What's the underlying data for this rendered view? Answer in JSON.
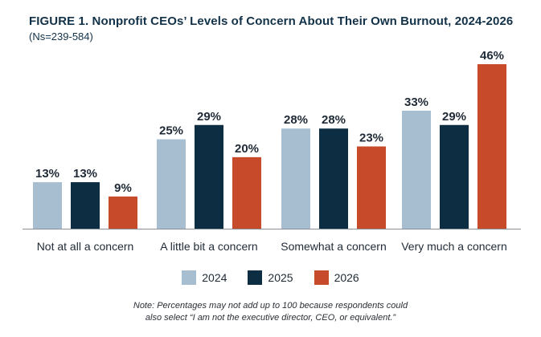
{
  "title": "FIGURE 1. Nonprofit CEOs’ Levels of Concern About Their Own Burnout, 2024-2026",
  "subtitle": "(Ns=239-584)",
  "note_line1": "Note: Percentages may not add up to 100 because respondents could",
  "note_line2": "also select “I am not the executive director, CEO, or equivalent.”",
  "chart_data": {
    "type": "bar",
    "categories": [
      "Not at all a concern",
      "A little bit a concern",
      "Somewhat a concern",
      "Very much a concern"
    ],
    "series": [
      {
        "name": "2024",
        "color": "#a7bed0",
        "values": [
          13,
          25,
          28,
          33
        ]
      },
      {
        "name": "2025",
        "color": "#0d2d42",
        "values": [
          13,
          29,
          28,
          29
        ]
      },
      {
        "name": "2026",
        "color": "#c74b2a",
        "values": [
          9,
          20,
          23,
          46
        ]
      }
    ],
    "value_suffix": "%",
    "ylim": [
      0,
      50
    ],
    "grid": false,
    "legend_position": "bottom"
  }
}
